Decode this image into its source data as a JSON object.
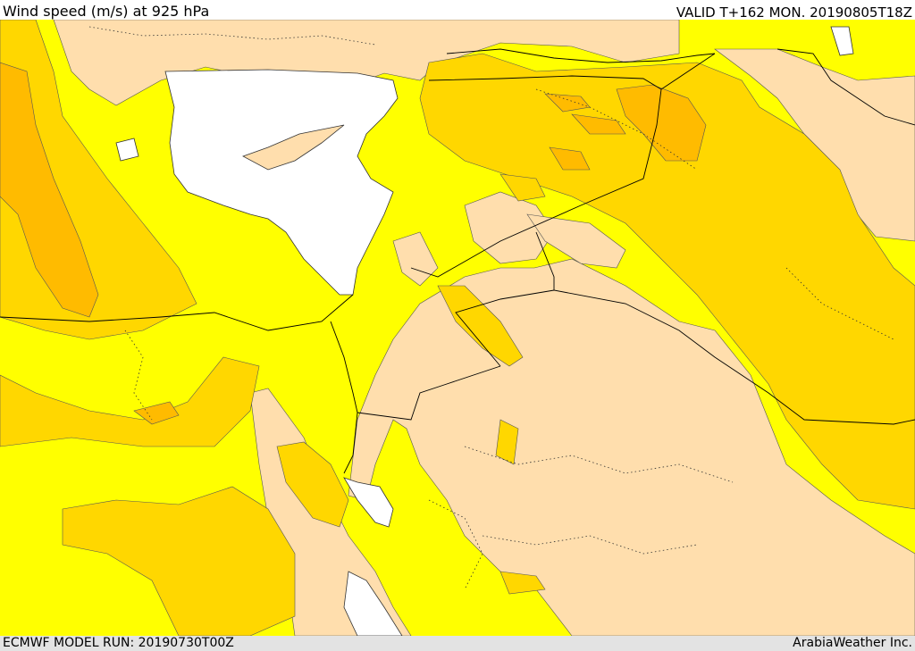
{
  "header": {
    "title": "Wind speed (m/s) at 925 hPa",
    "valid": "VALID T+162 MON. 20190805T18Z"
  },
  "footer": {
    "model_run": "ECMWF MODEL RUN: 20190730T00Z",
    "credit": "ArabiaWeather Inc."
  },
  "colors": {
    "calm": "#ffdead",
    "light": "#ffff00",
    "moderate": "#ffd700",
    "fresh": "#ffbb00",
    "strong": "#ff9f00",
    "sea": "#ffffff"
  }
}
